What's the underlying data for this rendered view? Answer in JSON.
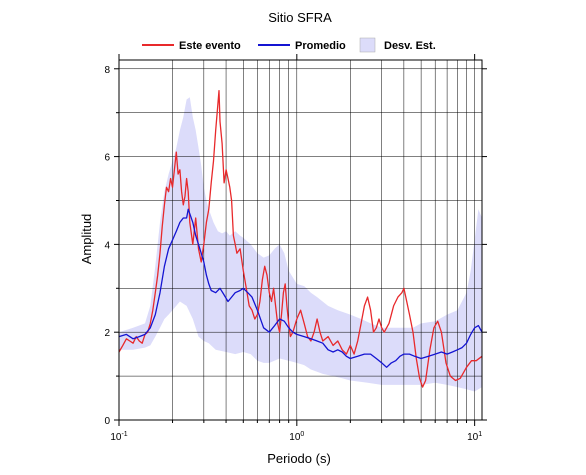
{
  "chart_data": {
    "type": "line",
    "title": "Sitio SFRA",
    "xlabel": "Periodo (s)",
    "ylabel": "Amplitud",
    "x_scale": "log",
    "xlim": [
      0.1,
      11
    ],
    "ylim": [
      0,
      8.2
    ],
    "grid": true,
    "legend_position": "top",
    "x_ticks": [
      {
        "value": 0.1,
        "base": "10",
        "exp": "-1"
      },
      {
        "value": 1,
        "base": "10",
        "exp": "0"
      },
      {
        "value": 10,
        "base": "10",
        "exp": "1"
      }
    ],
    "y_ticks": [
      {
        "value": 0,
        "label": "0"
      },
      {
        "value": 2,
        "label": "2"
      },
      {
        "value": 4,
        "label": "4"
      },
      {
        "value": 6,
        "label": "6"
      },
      {
        "value": 8,
        "label": "8"
      }
    ],
    "series": [
      {
        "name": "Este evento",
        "color": "#e8292b",
        "points": [
          [
            0.1,
            1.55
          ],
          [
            0.105,
            1.7
          ],
          [
            0.11,
            1.85
          ],
          [
            0.115,
            1.8
          ],
          [
            0.12,
            1.75
          ],
          [
            0.125,
            1.9
          ],
          [
            0.13,
            1.8
          ],
          [
            0.135,
            1.75
          ],
          [
            0.14,
            1.95
          ],
          [
            0.145,
            2.0
          ],
          [
            0.15,
            2.2
          ],
          [
            0.155,
            2.5
          ],
          [
            0.16,
            2.9
          ],
          [
            0.165,
            3.3
          ],
          [
            0.17,
            3.8
          ],
          [
            0.175,
            4.4
          ],
          [
            0.18,
            4.9
          ],
          [
            0.185,
            5.3
          ],
          [
            0.19,
            5.2
          ],
          [
            0.195,
            5.5
          ],
          [
            0.2,
            5.3
          ],
          [
            0.205,
            5.7
          ],
          [
            0.21,
            6.1
          ],
          [
            0.215,
            5.6
          ],
          [
            0.22,
            5.7
          ],
          [
            0.225,
            5.2
          ],
          [
            0.23,
            4.9
          ],
          [
            0.235,
            5.1
          ],
          [
            0.24,
            5.5
          ],
          [
            0.245,
            5.2
          ],
          [
            0.25,
            4.5
          ],
          [
            0.26,
            4.0
          ],
          [
            0.27,
            4.6
          ],
          [
            0.28,
            3.9
          ],
          [
            0.29,
            3.6
          ],
          [
            0.3,
            4.0
          ],
          [
            0.31,
            4.5
          ],
          [
            0.32,
            4.8
          ],
          [
            0.33,
            5.4
          ],
          [
            0.34,
            5.9
          ],
          [
            0.35,
            6.6
          ],
          [
            0.36,
            7.2
          ],
          [
            0.365,
            7.5
          ],
          [
            0.37,
            6.8
          ],
          [
            0.38,
            6.3
          ],
          [
            0.39,
            5.4
          ],
          [
            0.4,
            5.7
          ],
          [
            0.41,
            5.5
          ],
          [
            0.42,
            5.3
          ],
          [
            0.43,
            5.0
          ],
          [
            0.44,
            4.2
          ],
          [
            0.45,
            4.0
          ],
          [
            0.46,
            3.8
          ],
          [
            0.48,
            3.9
          ],
          [
            0.5,
            3.4
          ],
          [
            0.52,
            3.0
          ],
          [
            0.54,
            2.6
          ],
          [
            0.56,
            2.5
          ],
          [
            0.58,
            2.3
          ],
          [
            0.6,
            2.4
          ],
          [
            0.62,
            2.7
          ],
          [
            0.64,
            3.2
          ],
          [
            0.66,
            3.5
          ],
          [
            0.68,
            3.3
          ],
          [
            0.7,
            2.9
          ],
          [
            0.72,
            2.7
          ],
          [
            0.74,
            3.0
          ],
          [
            0.76,
            2.6
          ],
          [
            0.78,
            2.2
          ],
          [
            0.8,
            2.0
          ],
          [
            0.82,
            2.4
          ],
          [
            0.84,
            2.9
          ],
          [
            0.86,
            3.1
          ],
          [
            0.88,
            2.6
          ],
          [
            0.9,
            2.2
          ],
          [
            0.92,
            1.9
          ],
          [
            0.95,
            2.0
          ],
          [
            1.0,
            2.3
          ],
          [
            1.05,
            2.5
          ],
          [
            1.1,
            2.2
          ],
          [
            1.15,
            1.9
          ],
          [
            1.2,
            1.8
          ],
          [
            1.25,
            2.0
          ],
          [
            1.3,
            2.3
          ],
          [
            1.35,
            2.0
          ],
          [
            1.4,
            1.8
          ],
          [
            1.5,
            1.9
          ],
          [
            1.6,
            1.7
          ],
          [
            1.7,
            1.8
          ],
          [
            1.8,
            1.6
          ],
          [
            1.9,
            1.5
          ],
          [
            2.0,
            1.7
          ],
          [
            2.1,
            1.5
          ],
          [
            2.2,
            1.8
          ],
          [
            2.3,
            2.2
          ],
          [
            2.4,
            2.6
          ],
          [
            2.5,
            2.8
          ],
          [
            2.6,
            2.5
          ],
          [
            2.7,
            2.0
          ],
          [
            2.8,
            2.1
          ],
          [
            2.9,
            2.3
          ],
          [
            3.0,
            2.1
          ],
          [
            3.1,
            2.0
          ],
          [
            3.3,
            2.2
          ],
          [
            3.5,
            2.6
          ],
          [
            3.7,
            2.8
          ],
          [
            3.9,
            2.9
          ],
          [
            4.0,
            3.0
          ],
          [
            4.1,
            2.8
          ],
          [
            4.3,
            2.4
          ],
          [
            4.5,
            2.0
          ],
          [
            4.7,
            1.4
          ],
          [
            4.9,
            0.95
          ],
          [
            5.1,
            0.75
          ],
          [
            5.3,
            0.9
          ],
          [
            5.6,
            1.6
          ],
          [
            5.9,
            2.1
          ],
          [
            6.2,
            2.25
          ],
          [
            6.5,
            2.0
          ],
          [
            6.9,
            1.3
          ],
          [
            7.3,
            1.0
          ],
          [
            7.8,
            0.9
          ],
          [
            8.3,
            0.95
          ],
          [
            9.0,
            1.2
          ],
          [
            9.6,
            1.35
          ],
          [
            10.2,
            1.35
          ],
          [
            11.0,
            1.45
          ]
        ]
      },
      {
        "name": "Promedio",
        "color": "#1414d2",
        "points": [
          [
            0.1,
            1.9
          ],
          [
            0.11,
            1.95
          ],
          [
            0.12,
            1.85
          ],
          [
            0.13,
            1.9
          ],
          [
            0.14,
            1.95
          ],
          [
            0.15,
            2.1
          ],
          [
            0.16,
            2.4
          ],
          [
            0.17,
            2.9
          ],
          [
            0.18,
            3.5
          ],
          [
            0.19,
            3.9
          ],
          [
            0.2,
            4.1
          ],
          [
            0.21,
            4.3
          ],
          [
            0.22,
            4.5
          ],
          [
            0.23,
            4.6
          ],
          [
            0.24,
            4.6
          ],
          [
            0.245,
            4.8
          ],
          [
            0.25,
            4.7
          ],
          [
            0.26,
            4.5
          ],
          [
            0.27,
            4.2
          ],
          [
            0.28,
            4.0
          ],
          [
            0.29,
            3.8
          ],
          [
            0.3,
            3.6
          ],
          [
            0.31,
            3.3
          ],
          [
            0.32,
            3.1
          ],
          [
            0.33,
            2.95
          ],
          [
            0.35,
            2.9
          ],
          [
            0.37,
            3.0
          ],
          [
            0.39,
            2.85
          ],
          [
            0.41,
            2.7
          ],
          [
            0.43,
            2.8
          ],
          [
            0.45,
            2.9
          ],
          [
            0.48,
            2.95
          ],
          [
            0.5,
            3.0
          ],
          [
            0.53,
            2.9
          ],
          [
            0.56,
            2.8
          ],
          [
            0.6,
            2.5
          ],
          [
            0.65,
            2.1
          ],
          [
            0.7,
            2.0
          ],
          [
            0.75,
            2.15
          ],
          [
            0.8,
            2.3
          ],
          [
            0.85,
            2.25
          ],
          [
            0.9,
            2.1
          ],
          [
            0.95,
            2.0
          ],
          [
            1.0,
            1.95
          ],
          [
            1.1,
            1.9
          ],
          [
            1.2,
            1.85
          ],
          [
            1.3,
            1.8
          ],
          [
            1.4,
            1.75
          ],
          [
            1.5,
            1.6
          ],
          [
            1.6,
            1.55
          ],
          [
            1.7,
            1.6
          ],
          [
            1.8,
            1.55
          ],
          [
            1.9,
            1.45
          ],
          [
            2.0,
            1.4
          ],
          [
            2.2,
            1.45
          ],
          [
            2.4,
            1.5
          ],
          [
            2.6,
            1.5
          ],
          [
            2.8,
            1.4
          ],
          [
            3.0,
            1.3
          ],
          [
            3.2,
            1.2
          ],
          [
            3.4,
            1.3
          ],
          [
            3.6,
            1.35
          ],
          [
            3.8,
            1.45
          ],
          [
            4.0,
            1.5
          ],
          [
            4.3,
            1.5
          ],
          [
            4.6,
            1.45
          ],
          [
            5.0,
            1.4
          ],
          [
            5.5,
            1.45
          ],
          [
            6.0,
            1.5
          ],
          [
            6.5,
            1.55
          ],
          [
            7.0,
            1.5
          ],
          [
            7.5,
            1.55
          ],
          [
            8.0,
            1.6
          ],
          [
            8.5,
            1.65
          ],
          [
            9.0,
            1.75
          ],
          [
            9.5,
            1.95
          ],
          [
            10.0,
            2.1
          ],
          [
            10.5,
            2.15
          ],
          [
            11.0,
            2.0
          ]
        ]
      }
    ],
    "band": {
      "name": "Desv. Est.",
      "color": "#dcdcfa",
      "upper": [
        [
          0.1,
          2.0
        ],
        [
          0.12,
          2.1
        ],
        [
          0.14,
          2.2
        ],
        [
          0.15,
          2.6
        ],
        [
          0.16,
          3.5
        ],
        [
          0.17,
          4.5
        ],
        [
          0.18,
          5.2
        ],
        [
          0.19,
          5.6
        ],
        [
          0.2,
          5.9
        ],
        [
          0.21,
          6.2
        ],
        [
          0.22,
          6.6
        ],
        [
          0.23,
          6.9
        ],
        [
          0.24,
          7.3
        ],
        [
          0.25,
          7.35
        ],
        [
          0.26,
          6.9
        ],
        [
          0.27,
          6.6
        ],
        [
          0.28,
          6.2
        ],
        [
          0.29,
          5.8
        ],
        [
          0.3,
          5.3
        ],
        [
          0.31,
          5.0
        ],
        [
          0.32,
          4.8
        ],
        [
          0.34,
          4.5
        ],
        [
          0.36,
          4.3
        ],
        [
          0.38,
          4.25
        ],
        [
          0.4,
          4.3
        ],
        [
          0.42,
          4.2
        ],
        [
          0.45,
          4.3
        ],
        [
          0.48,
          4.2
        ],
        [
          0.5,
          4.15
        ],
        [
          0.55,
          4.0
        ],
        [
          0.6,
          3.8
        ],
        [
          0.65,
          3.7
        ],
        [
          0.7,
          3.75
        ],
        [
          0.75,
          3.9
        ],
        [
          0.8,
          4.0
        ],
        [
          0.85,
          3.8
        ],
        [
          0.9,
          3.4
        ],
        [
          1.0,
          3.1
        ],
        [
          1.1,
          3.05
        ],
        [
          1.2,
          2.9
        ],
        [
          1.3,
          2.8
        ],
        [
          1.5,
          2.6
        ],
        [
          1.7,
          2.5
        ],
        [
          2.0,
          2.4
        ],
        [
          2.3,
          2.3
        ],
        [
          2.6,
          2.2
        ],
        [
          3.0,
          2.1
        ],
        [
          3.5,
          2.1
        ],
        [
          4.0,
          2.1
        ],
        [
          4.5,
          2.1
        ],
        [
          5.0,
          2.2
        ],
        [
          6.0,
          2.25
        ],
        [
          7.0,
          2.4
        ],
        [
          8.0,
          2.5
        ],
        [
          9.0,
          2.9
        ],
        [
          9.5,
          3.4
        ],
        [
          10.0,
          4.1
        ],
        [
          10.5,
          4.8
        ],
        [
          11.0,
          4.6
        ]
      ],
      "lower": [
        [
          0.1,
          1.6
        ],
        [
          0.12,
          1.6
        ],
        [
          0.14,
          1.65
        ],
        [
          0.15,
          1.7
        ],
        [
          0.16,
          1.9
        ],
        [
          0.17,
          2.1
        ],
        [
          0.18,
          2.3
        ],
        [
          0.19,
          2.4
        ],
        [
          0.2,
          2.5
        ],
        [
          0.22,
          2.7
        ],
        [
          0.24,
          2.6
        ],
        [
          0.26,
          2.3
        ],
        [
          0.28,
          1.9
        ],
        [
          0.3,
          1.8
        ],
        [
          0.32,
          1.75
        ],
        [
          0.35,
          1.6
        ],
        [
          0.4,
          1.55
        ],
        [
          0.45,
          1.5
        ],
        [
          0.5,
          1.55
        ],
        [
          0.55,
          1.5
        ],
        [
          0.6,
          1.35
        ],
        [
          0.65,
          1.3
        ],
        [
          0.7,
          1.3
        ],
        [
          0.8,
          1.4
        ],
        [
          0.9,
          1.35
        ],
        [
          1.0,
          1.3
        ],
        [
          1.1,
          1.25
        ],
        [
          1.2,
          1.15
        ],
        [
          1.4,
          1.05
        ],
        [
          1.6,
          1.0
        ],
        [
          1.8,
          0.95
        ],
        [
          2.0,
          0.9
        ],
        [
          2.5,
          0.85
        ],
        [
          3.0,
          0.8
        ],
        [
          3.5,
          0.8
        ],
        [
          4.0,
          0.8
        ],
        [
          5.0,
          0.8
        ],
        [
          6.0,
          0.85
        ],
        [
          7.0,
          0.8
        ],
        [
          8.0,
          0.75
        ],
        [
          9.0,
          0.7
        ],
        [
          10.0,
          0.65
        ],
        [
          11.0,
          0.75
        ]
      ]
    }
  }
}
